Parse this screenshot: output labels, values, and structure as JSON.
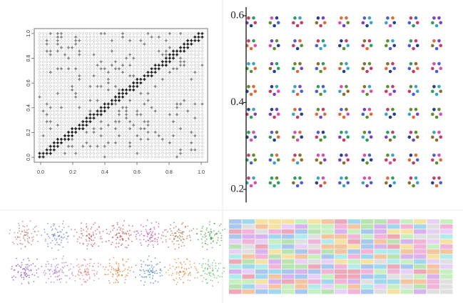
{
  "panels": [
    {
      "type": "scatter",
      "xlim": [
        -0.04,
        1.04
      ],
      "ylim": [
        -0.04,
        1.04
      ],
      "xticks": [
        {
          "value": 0,
          "label": "0.0"
        },
        0.2,
        0.4,
        0.6,
        0.8,
        {
          "value": 1,
          "label": "1.0"
        }
      ],
      "yticks": [
        {
          "value": 0,
          "label": "0.0"
        },
        0.2,
        0.4,
        0.6,
        0.8,
        {
          "value": 1,
          "label": "1.0"
        }
      ]
    },
    {
      "type": "scatter",
      "ylim": [
        0.17,
        0.62
      ],
      "yticks": [
        0.2,
        0.4,
        0.6
      ]
    }
  ]
}
